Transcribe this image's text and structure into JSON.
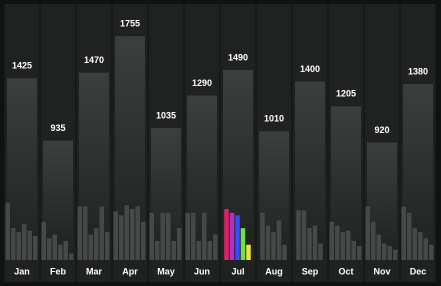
{
  "chart_data": {
    "type": "bar",
    "categories": [
      "Jan",
      "Feb",
      "Mar",
      "Apr",
      "May",
      "Jun",
      "Jul",
      "Aug",
      "Sep",
      "Oct",
      "Nov",
      "Dec"
    ],
    "values": [
      1425,
      935,
      1470,
      1755,
      1035,
      1290,
      1490,
      1010,
      1400,
      1205,
      920,
      1380
    ],
    "color": "#3a3b3b",
    "ylim": [
      0,
      2000
    ],
    "sub_values": [
      [
        450,
        250,
        220,
        280,
        230,
        190
      ],
      [
        300,
        170,
        200,
        120,
        150,
        50
      ],
      [
        420,
        420,
        200,
        250,
        420,
        220
      ],
      [
        380,
        350,
        430,
        400,
        420,
        300
      ],
      [
        370,
        150,
        370,
        370,
        150,
        250
      ],
      [
        370,
        370,
        150,
        370,
        150,
        200
      ],
      [
        400,
        370,
        350,
        250,
        120
      ],
      [
        370,
        270,
        220,
        310,
        120
      ],
      [
        390,
        390,
        250,
        270,
        130
      ],
      [
        300,
        270,
        220,
        230,
        150,
        110
      ],
      [
        420,
        300,
        200,
        130,
        110,
        80
      ],
      [
        420,
        370,
        250,
        220,
        170,
        120
      ]
    ],
    "sub_color": "#474949",
    "highlight_index": 6,
    "highlight_colors": [
      "#e0206c",
      "#b030c8",
      "#3050ff",
      "#70e040",
      "#f0e040"
    ]
  }
}
